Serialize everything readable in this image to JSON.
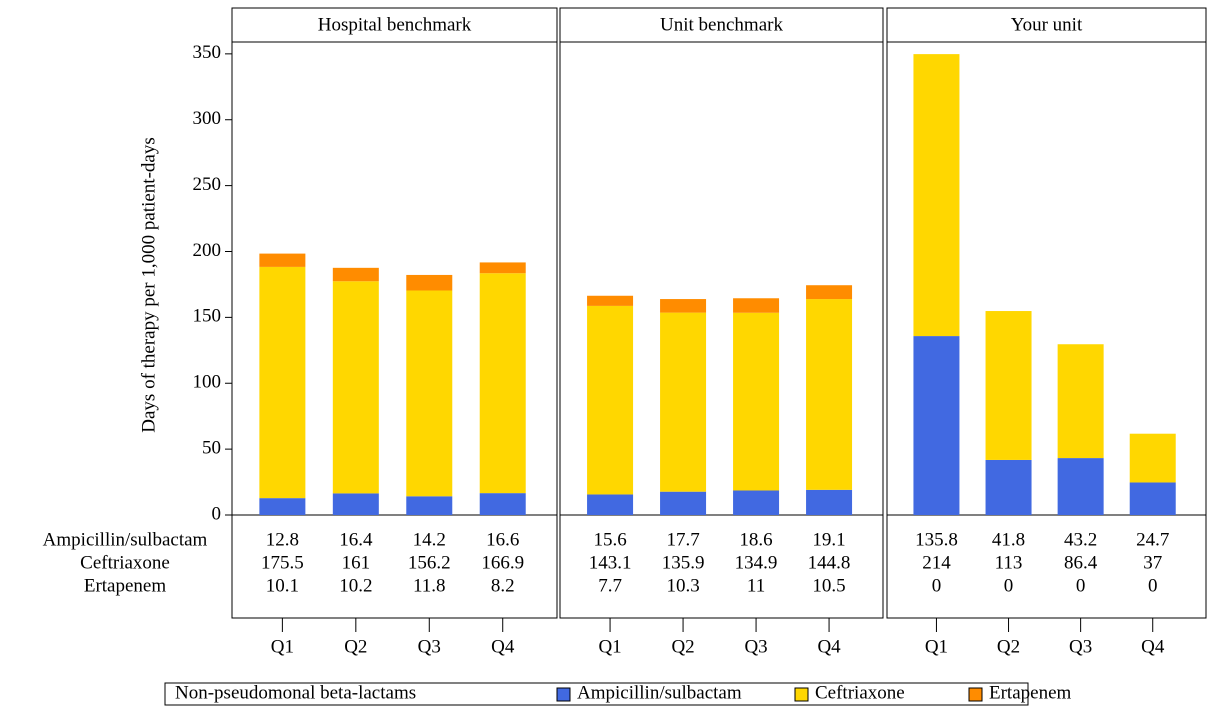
{
  "chart_data": [
    {
      "type": "bar",
      "stacked": true,
      "title": "Hospital benchmark",
      "ylabel": "Days of therapy per 1,000 patient-days",
      "categories": [
        "Q1",
        "Q2",
        "Q3",
        "Q4"
      ],
      "series": [
        {
          "name": "Ampicillin/sulbactam",
          "color": "#4169e1",
          "values": [
            12.8,
            16.4,
            14.2,
            16.6
          ]
        },
        {
          "name": "Ceftriaxone",
          "color": "#ffd700",
          "values": [
            175.5,
            161,
            156.2,
            166.9
          ]
        },
        {
          "name": "Ertapenem",
          "color": "#ff8c00",
          "values": [
            10.1,
            10.2,
            11.8,
            8.2
          ]
        }
      ],
      "ylim": [
        0,
        359
      ],
      "yticks": [
        0,
        50,
        100,
        150,
        200,
        250,
        300,
        350
      ]
    },
    {
      "type": "bar",
      "stacked": true,
      "title": "Unit benchmark",
      "categories": [
        "Q1",
        "Q2",
        "Q3",
        "Q4"
      ],
      "series": [
        {
          "name": "Ampicillin/sulbactam",
          "color": "#4169e1",
          "values": [
            15.6,
            17.7,
            18.6,
            19.1
          ]
        },
        {
          "name": "Ceftriaxone",
          "color": "#ffd700",
          "values": [
            143.1,
            135.9,
            134.9,
            144.8
          ]
        },
        {
          "name": "Ertapenem",
          "color": "#ff8c00",
          "values": [
            7.7,
            10.3,
            11,
            10.5
          ]
        }
      ],
      "ylim": [
        0,
        359
      ]
    },
    {
      "type": "bar",
      "stacked": true,
      "title": "Your unit",
      "categories": [
        "Q1",
        "Q2",
        "Q3",
        "Q4"
      ],
      "series": [
        {
          "name": "Ampicillin/sulbactam",
          "color": "#4169e1",
          "values": [
            135.8,
            41.8,
            43.2,
            24.7
          ]
        },
        {
          "name": "Ceftriaxone",
          "color": "#ffd700",
          "values": [
            214,
            113,
            86.4,
            37
          ]
        },
        {
          "name": "Ertapenem",
          "color": "#ff8c00",
          "values": [
            0,
            0,
            0,
            0
          ]
        }
      ],
      "ylim": [
        0,
        359
      ]
    }
  ],
  "legend": {
    "title": "Non-pseudomonal beta-lactams"
  }
}
